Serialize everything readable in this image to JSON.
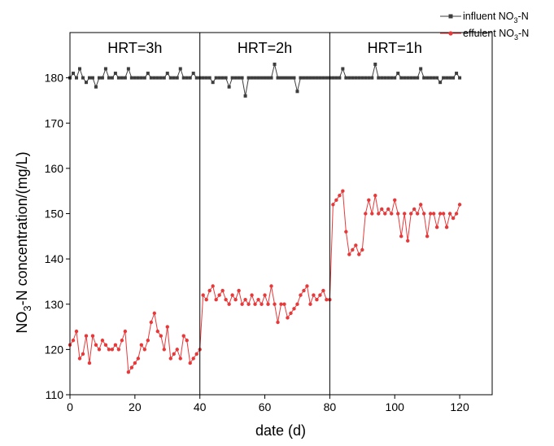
{
  "chart_data": {
    "type": "line",
    "xlabel": "date (d)",
    "ylabel_parts": [
      "NO",
      "3",
      "-N concentration/(mg/L)"
    ],
    "xlim": [
      0,
      130
    ],
    "ylim": [
      110,
      190
    ],
    "x_ticks": [
      0,
      20,
      40,
      60,
      80,
      100,
      120
    ],
    "y_ticks": [
      110,
      120,
      130,
      140,
      150,
      160,
      170,
      180
    ],
    "grid": false,
    "legend_position": "top-right",
    "phase_lines": [
      40,
      80
    ],
    "phase_labels": [
      {
        "text": "HRT=3h",
        "x": 20
      },
      {
        "text": "HRT=2h",
        "x": 60
      },
      {
        "text": "HRT=1h",
        "x": 100
      }
    ],
    "series": [
      {
        "legend_parts": [
          "influent NO",
          "3",
          "-N"
        ],
        "color": "#3d3d3d",
        "marker": "square",
        "x": [
          0,
          1,
          2,
          3,
          4,
          5,
          6,
          7,
          8,
          9,
          10,
          11,
          12,
          13,
          14,
          15,
          16,
          17,
          18,
          19,
          20,
          21,
          22,
          23,
          24,
          25,
          26,
          27,
          28,
          29,
          30,
          31,
          32,
          33,
          34,
          35,
          36,
          37,
          38,
          39,
          40,
          41,
          42,
          43,
          44,
          45,
          46,
          47,
          48,
          49,
          50,
          51,
          52,
          53,
          54,
          55,
          56,
          57,
          58,
          59,
          60,
          61,
          62,
          63,
          64,
          65,
          66,
          67,
          68,
          69,
          70,
          71,
          72,
          73,
          74,
          75,
          76,
          77,
          78,
          79,
          80,
          81,
          82,
          83,
          84,
          85,
          86,
          87,
          88,
          89,
          90,
          91,
          92,
          93,
          94,
          95,
          96,
          97,
          98,
          99,
          100,
          101,
          102,
          103,
          104,
          105,
          106,
          107,
          108,
          109,
          110,
          111,
          112,
          113,
          114,
          115,
          116,
          117,
          118,
          119,
          120
        ],
        "y": [
          180,
          181,
          180,
          182,
          180,
          179,
          180,
          180,
          178,
          180,
          180,
          182,
          180,
          180,
          181,
          180,
          180,
          180,
          182,
          180,
          180,
          180,
          180,
          180,
          181,
          180,
          180,
          180,
          180,
          180,
          181,
          180,
          180,
          180,
          182,
          180,
          180,
          180,
          181,
          180,
          180,
          180,
          180,
          180,
          179,
          180,
          180,
          180,
          180,
          178,
          180,
          180,
          180,
          180,
          176,
          180,
          180,
          180,
          180,
          180,
          180,
          180,
          180,
          183,
          180,
          180,
          180,
          180,
          180,
          180,
          177,
          180,
          180,
          180,
          180,
          180,
          180,
          180,
          180,
          180,
          180,
          180,
          180,
          180,
          182,
          180,
          180,
          180,
          180,
          180,
          180,
          180,
          180,
          180,
          183,
          180,
          180,
          180,
          180,
          180,
          180,
          181,
          180,
          180,
          180,
          180,
          180,
          180,
          182,
          180,
          180,
          180,
          180,
          180,
          179,
          180,
          180,
          180,
          180,
          181,
          180
        ]
      },
      {
        "legend_parts": [
          "effulent NO",
          "3",
          "-N"
        ],
        "color": "#e8393a",
        "marker": "circle",
        "x": [
          0,
          1,
          2,
          3,
          4,
          5,
          6,
          7,
          8,
          9,
          10,
          11,
          12,
          13,
          14,
          15,
          16,
          17,
          18,
          19,
          20,
          21,
          22,
          23,
          24,
          25,
          26,
          27,
          28,
          29,
          30,
          31,
          32,
          33,
          34,
          35,
          36,
          37,
          38,
          39,
          40,
          41,
          42,
          43,
          44,
          45,
          46,
          47,
          48,
          49,
          50,
          51,
          52,
          53,
          54,
          55,
          56,
          57,
          58,
          59,
          60,
          61,
          62,
          63,
          64,
          65,
          66,
          67,
          68,
          69,
          70,
          71,
          72,
          73,
          74,
          75,
          76,
          77,
          78,
          79,
          80,
          81,
          82,
          83,
          84,
          85,
          86,
          87,
          88,
          89,
          90,
          91,
          92,
          93,
          94,
          95,
          96,
          97,
          98,
          99,
          100,
          101,
          102,
          103,
          104,
          105,
          106,
          107,
          108,
          109,
          110,
          111,
          112,
          113,
          114,
          115,
          116,
          117,
          118,
          119,
          120
        ],
        "y": [
          121,
          122,
          124,
          118,
          119,
          123,
          117,
          123,
          121,
          120,
          122,
          121,
          120,
          120,
          121,
          120,
          122,
          124,
          115,
          116,
          117,
          118,
          121,
          120,
          122,
          126,
          128,
          124,
          123,
          120,
          125,
          118,
          119,
          120,
          118,
          123,
          122,
          117,
          118,
          119,
          120,
          132,
          131,
          133,
          134,
          131,
          132,
          133,
          131,
          130,
          132,
          131,
          133,
          130,
          131,
          130,
          132,
          130,
          131,
          130,
          132,
          130,
          134,
          130,
          126,
          130,
          130,
          127,
          128,
          129,
          130,
          132,
          133,
          134,
          130,
          132,
          131,
          132,
          133,
          131,
          131,
          152,
          153,
          154,
          155,
          146,
          141,
          142,
          143,
          141,
          142,
          150,
          153,
          150,
          154,
          150,
          151,
          150,
          151,
          150,
          153,
          150,
          145,
          150,
          144,
          150,
          151,
          150,
          152,
          150,
          145,
          150,
          150,
          147,
          150,
          150,
          147,
          150,
          149,
          150,
          152
        ]
      }
    ]
  }
}
